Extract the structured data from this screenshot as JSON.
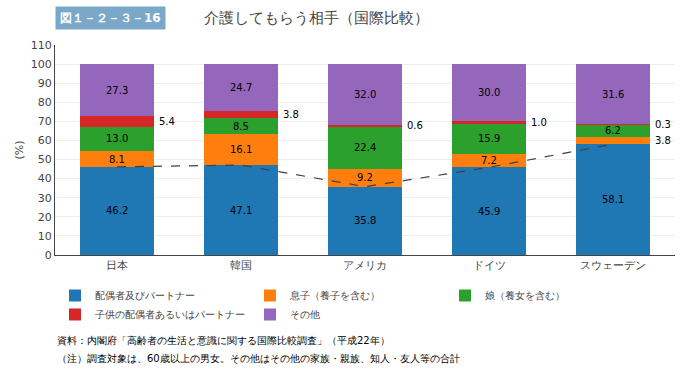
{
  "chart_data": {
    "type": "bar",
    "title": "介護してもらう相手（国際比較）",
    "subtitle": "図１－２－３－16",
    "ylabel": "(%)",
    "categories": [
      "日本",
      "韓国",
      "アメリカ",
      "ドイツ",
      "スウェーデン"
    ],
    "stacked": true,
    "data_labels": true,
    "series": [
      {
        "name": "配偶者及びパートナー",
        "values": [
          46.2,
          47.1,
          35.8,
          45.9,
          58.1
        ],
        "value_labels": [
          "46.2",
          "47.1",
          "35.8",
          "45.9",
          "58.1"
        ],
        "line_style": "dashed"
      },
      {
        "name": "息子（養子を含む）",
        "values": [
          8.1,
          16.1,
          9.2,
          7.2,
          3.8
        ],
        "value_labels": [
          "8.1",
          "16.1",
          "9.2",
          "7.2",
          "3.8"
        ]
      },
      {
        "name": "娘（養女を含む）",
        "values": [
          13.0,
          8.5,
          22.4,
          15.9,
          6.2
        ],
        "value_labels": [
          "13.0",
          "8.5",
          "22.4",
          "15.9",
          "6.2"
        ]
      },
      {
        "name": "子供の配偶者あるいはパートナー",
        "values": [
          5.4,
          3.8,
          0.6,
          1.0,
          0.3
        ],
        "value_labels": [
          "5.4",
          "3.8",
          "0.6",
          "1.0",
          "0.3"
        ]
      },
      {
        "name": "その他",
        "values": [
          27.3,
          24.7,
          32.0,
          30.0,
          31.6
        ],
        "value_labels": [
          "27.3",
          "24.7",
          "32.0",
          "30.0",
          "31.6"
        ]
      }
    ],
    "ylim": [
      0,
      110
    ],
    "yticks": [
      0,
      10,
      20,
      30,
      40,
      50,
      60,
      70,
      80,
      90,
      100,
      110
    ],
    "grid": true,
    "legend": "bottom",
    "annotations": [
      "資料：内閣府「高齢者の生活と意識に関する国際比較調査」（平成22年）",
      "（注）調査対象は、60歳以上の男女。その他はその他の家族・親族、知人・友人等の合計"
    ]
  }
}
